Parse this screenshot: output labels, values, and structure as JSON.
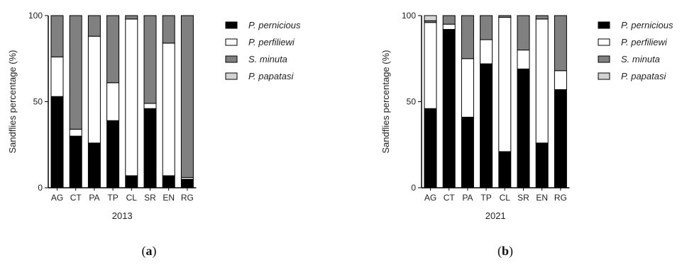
{
  "chart_data": [
    {
      "type": "bar",
      "stacked": true,
      "panel_label_open": "(",
      "panel_label_letter": "a",
      "panel_label_close": ")",
      "xlabel": "2013",
      "ylabel": "Sandflies percentage (%)",
      "ylim": [
        0,
        100
      ],
      "yticks": [
        0,
        50,
        100
      ],
      "categories": [
        "AG",
        "CT",
        "PA",
        "TP",
        "CL",
        "SR",
        "EN",
        "RG"
      ],
      "series": [
        {
          "name": "P. pernicious",
          "color": "#000000",
          "values": [
            53,
            30,
            26,
            39,
            7,
            46,
            7,
            5
          ]
        },
        {
          "name": "P. perfiliewi",
          "color": "#ffffff",
          "values": [
            23,
            4,
            62,
            22,
            91,
            3,
            77,
            1
          ]
        },
        {
          "name": "S. minuta",
          "color": "#808080",
          "values": [
            24,
            66,
            12,
            39,
            2,
            51,
            16,
            94
          ]
        },
        {
          "name": "P. papatasi",
          "color": "#d3d3d3",
          "values": [
            0,
            0,
            0,
            0,
            0,
            0,
            0,
            0
          ]
        }
      ],
      "legend_position": "right"
    },
    {
      "type": "bar",
      "stacked": true,
      "panel_label_open": "(",
      "panel_label_letter": "b",
      "panel_label_close": ")",
      "xlabel": "2021",
      "ylabel": "Sandflies percentage (%)",
      "ylim": [
        0,
        100
      ],
      "yticks": [
        0,
        50,
        100
      ],
      "categories": [
        "AG",
        "CT",
        "PA",
        "TP",
        "CL",
        "SR",
        "EN",
        "RG"
      ],
      "series": [
        {
          "name": "P. pernicious",
          "color": "#000000",
          "values": [
            46,
            92,
            41,
            72,
            21,
            69,
            26,
            57
          ]
        },
        {
          "name": "P. perfiliewi",
          "color": "#ffffff",
          "values": [
            50,
            3,
            34,
            14,
            78,
            11,
            72,
            11
          ]
        },
        {
          "name": "S. minuta",
          "color": "#808080",
          "values": [
            1,
            5,
            25,
            14,
            1,
            20,
            2,
            32
          ]
        },
        {
          "name": "P. papatasi",
          "color": "#d3d3d3",
          "values": [
            3,
            0,
            0,
            0,
            0,
            0,
            0,
            0
          ]
        }
      ],
      "legend_position": "right"
    }
  ]
}
